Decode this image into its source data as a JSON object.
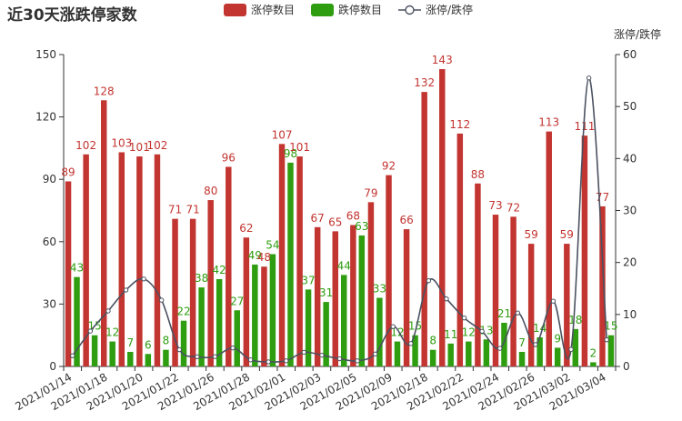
{
  "chart_data": {
    "type": "bar",
    "title": "近30天涨跌停家数",
    "y2_label": "涨停/跌停",
    "legend": [
      "涨停数目",
      "跌停数目",
      "涨停/跌停"
    ],
    "legend_position": "top",
    "ylim": [
      0,
      150
    ],
    "yticks": [
      0,
      30,
      60,
      90,
      120,
      150
    ],
    "y2lim": [
      0,
      60
    ],
    "y2ticks": [
      0,
      10,
      20,
      30,
      40,
      50,
      60
    ],
    "xtick_labels": [
      "2021/01/14",
      "2021/01/18",
      "2021/01/20",
      "2021/01/22",
      "2021/01/26",
      "2021/01/28",
      "2021/02/01",
      "2021/02/03",
      "2021/02/05",
      "2021/02/09",
      "2021/02/18",
      "2021/02/22",
      "2021/02/24",
      "2021/02/26",
      "2021/03/02",
      "2021/03/04"
    ],
    "grid": false,
    "series": [
      {
        "name": "涨停数目",
        "type": "bar",
        "color": "#c23531",
        "values": [
          89,
          102,
          128,
          103,
          101,
          102,
          71,
          71,
          80,
          96,
          62,
          48,
          107,
          101,
          67,
          65,
          68,
          79,
          92,
          66,
          132,
          143,
          112,
          88,
          73,
          72,
          59,
          113,
          59,
          111,
          77
        ]
      },
      {
        "name": "跌停数目",
        "type": "bar",
        "color": "#2f9d10",
        "values": [
          43,
          15,
          12,
          7,
          6,
          8,
          22,
          38,
          42,
          27,
          49,
          54,
          98,
          37,
          31,
          44,
          63,
          33,
          12,
          15,
          8,
          11,
          12,
          13,
          21,
          7,
          14,
          9,
          18,
          2,
          15
        ]
      },
      {
        "name": "涨停/跌停",
        "type": "line",
        "color": "#4a5160",
        "axis": "right",
        "values": [
          2.07,
          6.8,
          10.67,
          14.71,
          16.83,
          12.75,
          3.23,
          1.87,
          1.9,
          3.56,
          1.27,
          0.89,
          1.09,
          2.73,
          2.16,
          1.48,
          1.08,
          2.39,
          7.67,
          4.4,
          16.5,
          13.0,
          9.33,
          6.77,
          3.48,
          10.29,
          4.21,
          12.56,
          3.28,
          55.5,
          5.13
        ]
      }
    ]
  }
}
